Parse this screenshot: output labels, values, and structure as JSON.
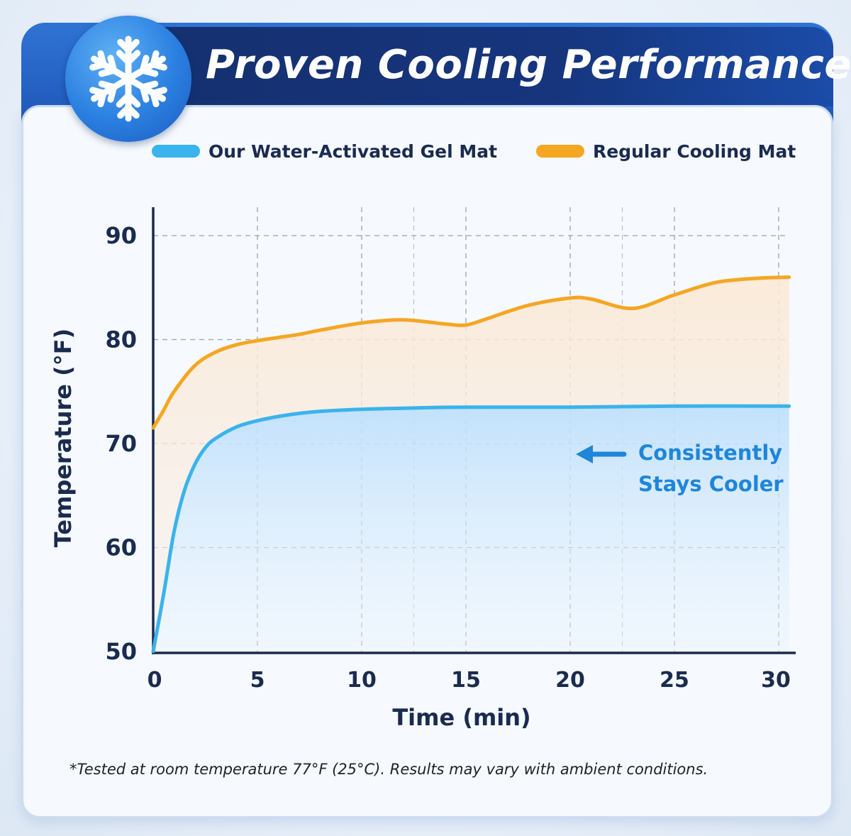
{
  "header": {
    "title": "Proven Cooling Performance",
    "badge_icon": "snowflake-icon"
  },
  "legend": [
    {
      "label": "Our Water-Activated Gel Mat",
      "color": "#3bb3ec"
    },
    {
      "label": "Regular Cooling Mat",
      "color": "#f5a623"
    }
  ],
  "chart_data": {
    "type": "line",
    "xlabel": "Time (min)",
    "ylabel": "Temperature (°F)",
    "xlim": [
      0,
      31
    ],
    "ylim": [
      50,
      92
    ],
    "x_ticks": [
      0,
      5,
      10,
      15,
      20,
      25,
      30
    ],
    "y_ticks": [
      50,
      60,
      70,
      80,
      90
    ],
    "grid": true,
    "legend_position": "top",
    "series": [
      {
        "name": "Our Water-Activated Gel Mat",
        "color": "#3bb3ec",
        "x": [
          0,
          0.5,
          1,
          1.5,
          2,
          2.5,
          3,
          4,
          5,
          6,
          7,
          8,
          10,
          12,
          15,
          20,
          25,
          30.5
        ],
        "y": [
          50,
          55.5,
          61.5,
          65.5,
          68,
          69.6,
          70.5,
          71.6,
          72.2,
          72.6,
          72.9,
          73.1,
          73.3,
          73.4,
          73.5,
          73.5,
          73.6,
          73.6
        ]
      },
      {
        "name": "Regular Cooling Mat",
        "color": "#f5a623",
        "x": [
          0,
          0.5,
          1,
          2,
          3,
          4,
          5,
          6,
          7,
          8,
          10,
          12,
          14,
          15,
          16,
          18,
          20,
          21,
          23,
          25,
          27,
          29,
          30.5
        ],
        "y": [
          71.5,
          73.2,
          75,
          77.5,
          78.8,
          79.5,
          79.9,
          80.2,
          80.5,
          80.9,
          81.6,
          81.9,
          81.5,
          81.4,
          82.0,
          83.3,
          84.0,
          83.9,
          83.0,
          84.3,
          85.5,
          85.9,
          86.0
        ]
      }
    ],
    "annotation": {
      "lines": [
        "Consistently",
        "Stays Cooler"
      ],
      "color": "#1f86d9",
      "arrow": "left"
    }
  },
  "footnote": "*Tested at room temperature 77°F (25°C). Results may vary with ambient conditions."
}
